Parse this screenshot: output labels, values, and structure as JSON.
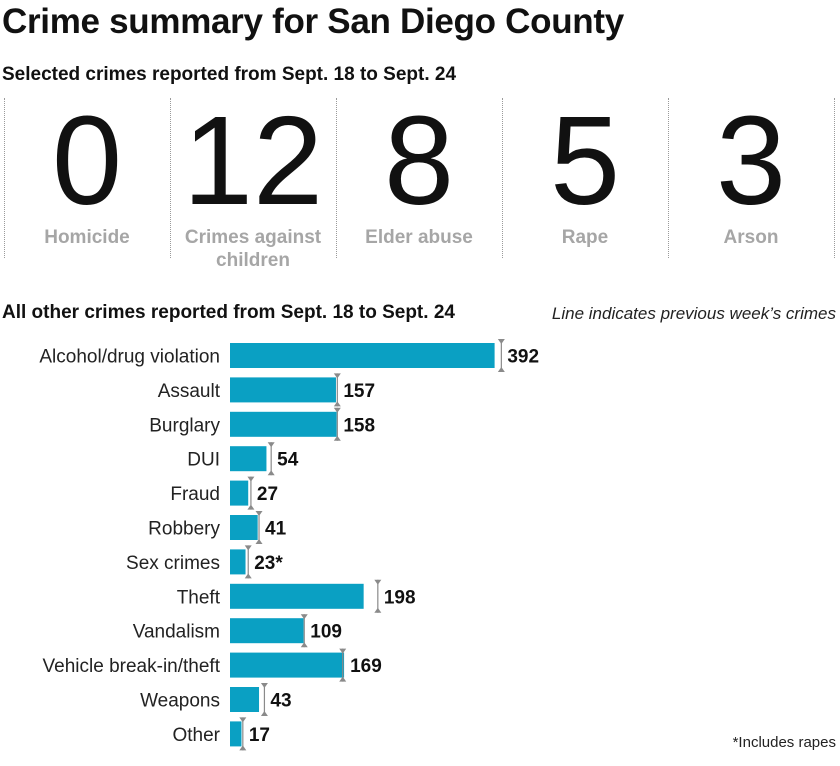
{
  "title": "Crime summary for San Diego County",
  "subtitle": "Selected crimes reported from Sept. 18 to Sept. 24",
  "stats": [
    {
      "value": "0",
      "label": "Homicide"
    },
    {
      "value": "12",
      "label": "Crimes against children"
    },
    {
      "value": "8",
      "label": "Elder abuse"
    },
    {
      "value": "5",
      "label": "Rape"
    },
    {
      "value": "3",
      "label": "Arson"
    }
  ],
  "section_title": "All other crimes reported from Sept. 18 to Sept. 24",
  "note": "Line indicates previous week’s crimes",
  "footnote": "*Includes rapes",
  "colors": {
    "bar": "#0aa0c3",
    "marker": "#8a8a8a",
    "stat_label": "#a6a6a6"
  },
  "chart_data": {
    "type": "bar",
    "orientation": "horizontal",
    "categories": [
      "Alcohol/drug violation",
      "Assault",
      "Burglary",
      "DUI",
      "Fraud",
      "Robbery",
      "Sex crimes",
      "Theft",
      "Vandalism",
      "Vehicle break-in/theft",
      "Weapons",
      "Other"
    ],
    "value_labels": [
      "392",
      "157",
      "158",
      "54",
      "27",
      "41",
      "23*",
      "198",
      "109",
      "169",
      "43",
      "17"
    ],
    "series": [
      {
        "values": [
          392,
          157,
          158,
          54,
          27,
          41,
          23,
          198,
          109,
          169,
          43,
          17
        ]
      },
      {
        "values": [
          402,
          159,
          159,
          61,
          31,
          43,
          27,
          219,
          110,
          167,
          51,
          19
        ]
      }
    ],
    "xlim": [
      0,
      410
    ],
    "grid": false
  }
}
